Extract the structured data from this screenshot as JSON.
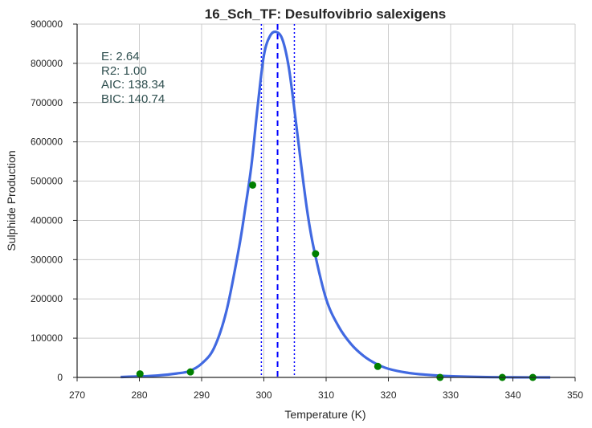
{
  "chart_data": {
    "type": "line",
    "title": "16_Sch_TF: Desulfovibrio salexigens",
    "xlabel": "Temperature (K)",
    "ylabel": "Sulphide Production",
    "xlim": [
      270,
      350
    ],
    "ylim": [
      0,
      900000
    ],
    "xticks": [
      "270",
      "280",
      "290",
      "300",
      "310",
      "320",
      "330",
      "340",
      "350"
    ],
    "yticks": [
      "0",
      "100000",
      "200000",
      "300000",
      "400000",
      "500000",
      "600000",
      "700000",
      "800000",
      "900000"
    ],
    "grid": true,
    "annotations": [
      "E:  2.64",
      "R2:  1.00",
      "AIC: 138.34",
      "BIC: 140.74"
    ],
    "series": [
      {
        "kind": "fitted-curve",
        "color": "#4169e1",
        "x": [
          277,
          280,
          283,
          286,
          288,
          290,
          292,
          294,
          296,
          297,
          298,
          299,
          300,
          301,
          302,
          303,
          304,
          305,
          306,
          307,
          308,
          310,
          312,
          314,
          316,
          318,
          320,
          323,
          326,
          330,
          335,
          340,
          346
        ],
        "y": [
          1000,
          2500,
          5000,
          10000,
          16000,
          35000,
          75000,
          170000,
          330000,
          430000,
          540000,
          690000,
          820000,
          870000,
          880000,
          860000,
          790000,
          670000,
          540000,
          420000,
          330000,
          200000,
          130000,
          85000,
          55000,
          35000,
          22000,
          12000,
          7000,
          3000,
          1000,
          300,
          50
        ]
      },
      {
        "kind": "observed-points",
        "color": "#008000",
        "x": [
          280.1,
          288.2,
          298.2,
          308.3,
          318.3,
          328.3,
          338.3,
          343.2
        ],
        "y": [
          9000,
          14000,
          490000,
          315000,
          28000,
          0,
          0,
          0
        ]
      }
    ],
    "vlines": [
      {
        "x": 302.2,
        "style": "dashed",
        "color": "#0000ff"
      },
      {
        "x": 299.6,
        "style": "dotted",
        "color": "#0000ff"
      },
      {
        "x": 304.9,
        "style": "dotted",
        "color": "#0000ff"
      }
    ]
  }
}
